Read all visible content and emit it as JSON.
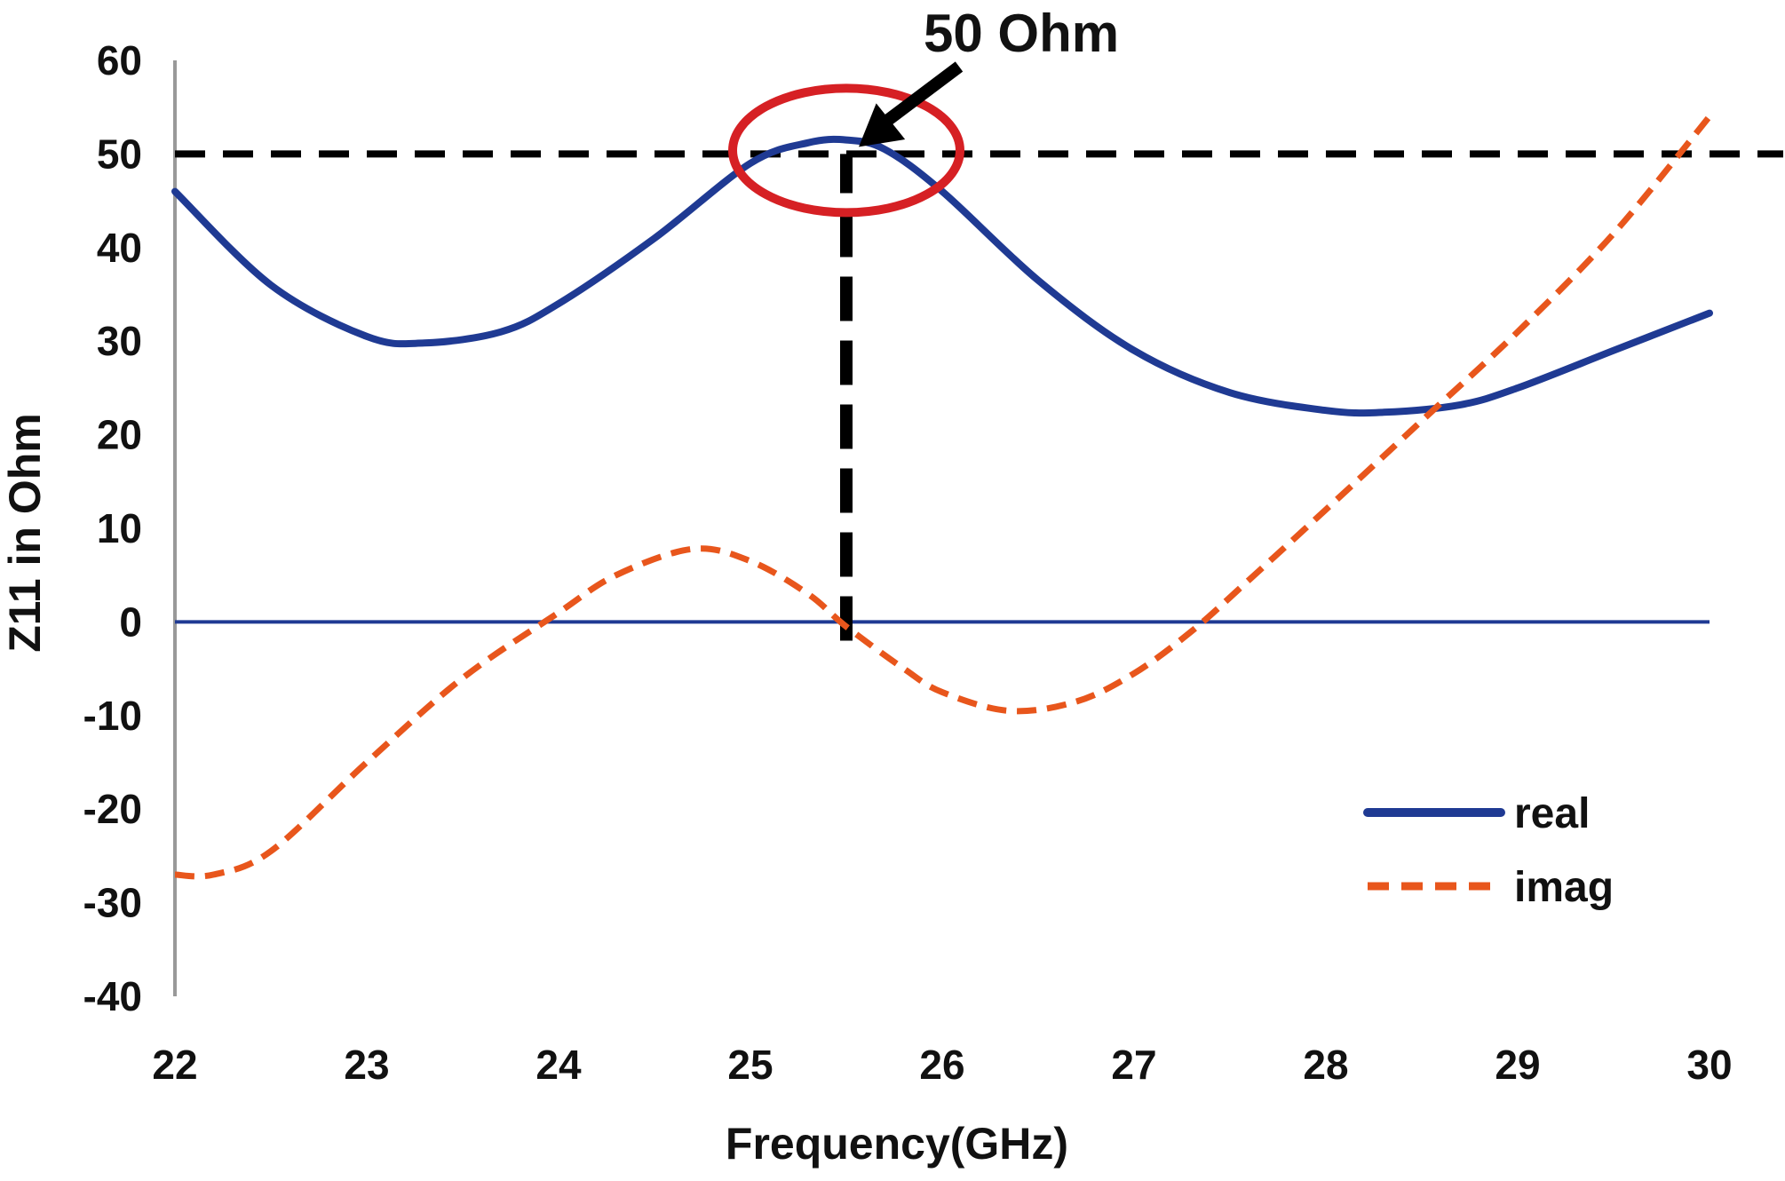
{
  "chart_data": {
    "type": "line",
    "title": "",
    "xlabel": "Frequency(GHz)",
    "ylabel": "Z11 in Ohm",
    "xlim": [
      22,
      30
    ],
    "ylim": [
      -40,
      60
    ],
    "x_ticks": [
      22,
      23,
      24,
      25,
      26,
      27,
      28,
      29,
      30
    ],
    "y_ticks": [
      60,
      50,
      40,
      30,
      20,
      10,
      0,
      -10,
      -20,
      -30,
      -40
    ],
    "grid": false,
    "legend_position": "bottom-right",
    "series": [
      {
        "name": "real",
        "color": "#1f3a93",
        "style": "solid",
        "x": [
          22,
          22.5,
          23,
          23.3,
          23.7,
          24,
          24.5,
          25,
          25.3,
          25.5,
          25.7,
          26,
          26.5,
          27,
          27.5,
          28,
          28.3,
          28.7,
          29,
          29.5,
          30
        ],
        "y": [
          46,
          36,
          30.5,
          29.8,
          31,
          34,
          41,
          49,
          51.2,
          51.5,
          50.5,
          46,
          36.5,
          29,
          24.5,
          22.6,
          22.4,
          23.2,
          25,
          29,
          33
        ]
      },
      {
        "name": "imag",
        "color": "#e8561c",
        "style": "dashed",
        "x": [
          22,
          22.2,
          22.5,
          23,
          23.5,
          24,
          24.3,
          24.7,
          25,
          25.3,
          25.5,
          25.8,
          26,
          26.35,
          26.7,
          27,
          27.3,
          27.6,
          28,
          28.5,
          29,
          29.5,
          30
        ],
        "y": [
          -27,
          -27,
          -24.5,
          -15,
          -6,
          1,
          5,
          7.8,
          6.5,
          3,
          -0.5,
          -5,
          -7.5,
          -9.5,
          -8.5,
          -5.5,
          -1,
          4.5,
          12,
          21.5,
          31,
          41.5,
          54
        ]
      }
    ],
    "reference_lines": [
      {
        "type": "horizontal",
        "y": 50,
        "color": "#000000",
        "style": "dashed"
      },
      {
        "type": "horizontal",
        "y": 0,
        "color": "#1f3a93",
        "style": "solid"
      },
      {
        "type": "vertical",
        "x": 25.5,
        "y_from": -2,
        "y_to": 50,
        "color": "#000000",
        "style": "dashed"
      }
    ],
    "annotations": [
      {
        "text": "50 Ohm",
        "x": 25.5,
        "y": 50,
        "marker": "red-ellipse",
        "arrow": true
      }
    ]
  },
  "colors": {
    "real": "#1f3a93",
    "imag": "#e8561c",
    "highlight": "#d62024",
    "reference": "#000000",
    "axis": "#999999"
  }
}
